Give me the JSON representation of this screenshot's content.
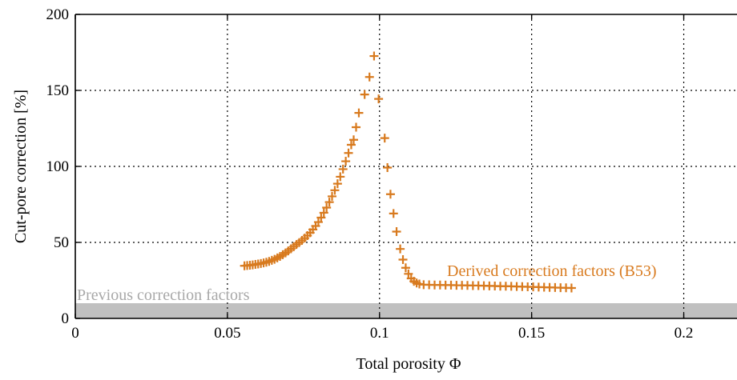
{
  "chart_data": {
    "type": "scatter",
    "title": "",
    "xlabel": "Total porosity Φ",
    "ylabel": "Cut-pore correction [%]",
    "xlim": [
      0,
      0.2175
    ],
    "ylim": [
      0,
      200
    ],
    "x_ticks": [
      0,
      0.05,
      0.1,
      0.15,
      0.2
    ],
    "x_tick_labels": [
      "0",
      "0.05",
      "0.1",
      "0.15",
      "0.2"
    ],
    "y_ticks": [
      0,
      50,
      100,
      150,
      200
    ],
    "y_tick_labels": [
      "0",
      "50",
      "100",
      "150",
      "200"
    ],
    "grid": true,
    "previous_band": {
      "name": "Previous correction factors",
      "y_range": [
        0,
        10
      ],
      "color": "#c0c0c0",
      "label_color": "#a8a8a8"
    },
    "series": [
      {
        "name": "Derived correction factors (B53)",
        "marker": "plus",
        "color": "#d87a1e",
        "points": [
          [
            0.0556,
            34.6
          ],
          [
            0.0565,
            34.8
          ],
          [
            0.0574,
            35.0
          ],
          [
            0.0583,
            35.2
          ],
          [
            0.0592,
            35.5
          ],
          [
            0.0601,
            35.8
          ],
          [
            0.061,
            36.1
          ],
          [
            0.0619,
            36.5
          ],
          [
            0.0628,
            37.0
          ],
          [
            0.0637,
            37.5
          ],
          [
            0.0646,
            38.2
          ],
          [
            0.0655,
            38.9
          ],
          [
            0.0664,
            39.8
          ],
          [
            0.0673,
            40.8
          ],
          [
            0.0682,
            41.9
          ],
          [
            0.0691,
            43.1
          ],
          [
            0.07,
            44.4
          ],
          [
            0.0709,
            45.8
          ],
          [
            0.0718,
            47.2
          ],
          [
            0.0727,
            48.6
          ],
          [
            0.0736,
            49.9
          ],
          [
            0.0745,
            51.3
          ],
          [
            0.0754,
            52.8
          ],
          [
            0.0763,
            54.5
          ],
          [
            0.0772,
            56.4
          ],
          [
            0.0781,
            58.5
          ],
          [
            0.079,
            60.8
          ],
          [
            0.0799,
            63.4
          ],
          [
            0.0808,
            66.3
          ],
          [
            0.0817,
            69.5
          ],
          [
            0.0826,
            72.9
          ],
          [
            0.0835,
            76.5
          ],
          [
            0.0844,
            80.3
          ],
          [
            0.0853,
            84.3
          ],
          [
            0.0862,
            88.6
          ],
          [
            0.0871,
            93.2
          ],
          [
            0.088,
            98.2
          ],
          [
            0.0889,
            103.4
          ],
          [
            0.0898,
            108.8
          ],
          [
            0.0907,
            114.2
          ],
          [
            0.0915,
            117.5
          ],
          [
            0.0923,
            125.8
          ],
          [
            0.0932,
            135.2
          ],
          [
            0.0951,
            147.3
          ],
          [
            0.0967,
            158.8
          ],
          [
            0.0982,
            172.6
          ],
          [
            0.0997,
            144.4
          ],
          [
            0.1017,
            118.6
          ],
          [
            0.1026,
            99.2
          ],
          [
            0.1036,
            81.7
          ],
          [
            0.1046,
            69.0
          ],
          [
            0.1056,
            57.1
          ],
          [
            0.1068,
            45.7
          ],
          [
            0.1077,
            38.7
          ],
          [
            0.1086,
            33.3
          ],
          [
            0.1095,
            29.3
          ],
          [
            0.1104,
            26.3
          ],
          [
            0.1113,
            24.4
          ],
          [
            0.1122,
            23.3
          ],
          [
            0.1131,
            22.6
          ],
          [
            0.1145,
            22.2
          ],
          [
            0.1163,
            22.1
          ],
          [
            0.1181,
            22.0
          ],
          [
            0.1199,
            22.0
          ],
          [
            0.1217,
            21.9
          ],
          [
            0.1235,
            21.9
          ],
          [
            0.1253,
            21.8
          ],
          [
            0.1271,
            21.8
          ],
          [
            0.1289,
            21.7
          ],
          [
            0.1307,
            21.6
          ],
          [
            0.1325,
            21.6
          ],
          [
            0.1343,
            21.5
          ],
          [
            0.1361,
            21.4
          ],
          [
            0.1379,
            21.3
          ],
          [
            0.1397,
            21.2
          ],
          [
            0.1415,
            21.2
          ],
          [
            0.1433,
            21.1
          ],
          [
            0.1451,
            21.0
          ],
          [
            0.1469,
            20.9
          ],
          [
            0.1487,
            20.8
          ],
          [
            0.1505,
            20.7
          ],
          [
            0.1523,
            20.6
          ],
          [
            0.1541,
            20.5
          ],
          [
            0.1559,
            20.4
          ],
          [
            0.1577,
            20.3
          ],
          [
            0.1595,
            20.2
          ],
          [
            0.1613,
            20.1
          ],
          [
            0.1631,
            20.0
          ]
        ]
      }
    ]
  }
}
